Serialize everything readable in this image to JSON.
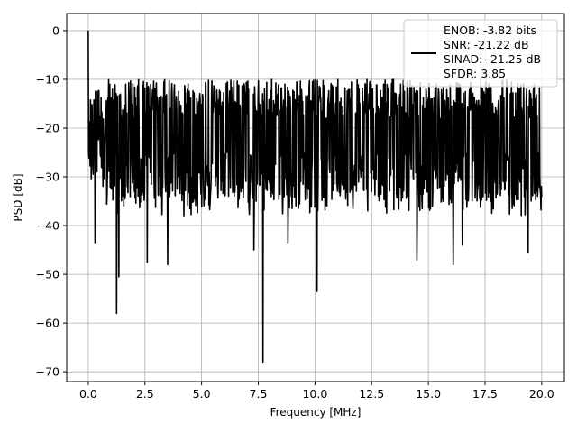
{
  "chart_data": {
    "type": "line",
    "title": "",
    "xlabel": "Frequency [MHz]",
    "ylabel": "PSD [dB]",
    "xlim": [
      -0.95,
      21.0
    ],
    "ylim": [
      -72.0,
      3.5
    ],
    "xticks": [
      0.0,
      2.5,
      5.0,
      7.5,
      10.0,
      12.5,
      15.0,
      17.5,
      20.0
    ],
    "xtick_labels": [
      "0.0",
      "2.5",
      "5.0",
      "7.5",
      "10.0",
      "12.5",
      "15.0",
      "17.5",
      "20.0"
    ],
    "yticks": [
      0,
      -10,
      -20,
      -30,
      -40,
      -50,
      -60,
      -70
    ],
    "ytick_labels": [
      "0",
      "−10",
      "−20",
      "−30",
      "−40",
      "−50",
      "−60",
      "−70"
    ],
    "grid": true,
    "legend_position": "top-right",
    "legend_lines": [
      "ENOB: -3.82 bits",
      "SNR: -21.22 dB",
      "SINAD: -21.25 dB",
      "SFDR: 3.85"
    ],
    "series": [
      {
        "color": "#000000",
        "x_range": [
          0.0,
          20.0
        ],
        "n_points": 1200,
        "typical_range": [
          -30,
          -10
        ],
        "peak": {
          "x": 0.0,
          "y": 0.0
        },
        "dips": [
          {
            "x": 0.3,
            "y": -43.5
          },
          {
            "x": 1.25,
            "y": -58.0
          },
          {
            "x": 1.35,
            "y": -50.5
          },
          {
            "x": 2.6,
            "y": -47.5
          },
          {
            "x": 3.5,
            "y": -48.0
          },
          {
            "x": 7.3,
            "y": -45.0
          },
          {
            "x": 7.7,
            "y": -68.0
          },
          {
            "x": 8.8,
            "y": -43.5
          },
          {
            "x": 10.1,
            "y": -53.5
          },
          {
            "x": 14.5,
            "y": -47.0
          },
          {
            "x": 16.1,
            "y": -48.0
          },
          {
            "x": 16.5,
            "y": -44.0
          },
          {
            "x": 19.4,
            "y": -45.5
          }
        ]
      }
    ]
  },
  "colors": {
    "line": "#000000",
    "grid": "#b0b0b0",
    "axes": "#000000",
    "legend_border": "#cccccc"
  }
}
